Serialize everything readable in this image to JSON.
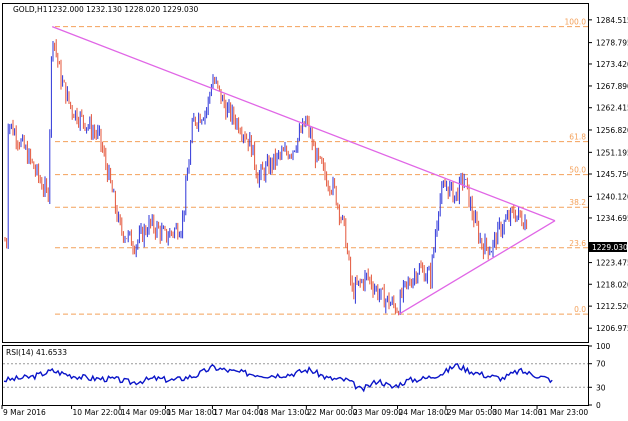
{
  "header": {
    "symbol": "GOLD,H1",
    "ohlc": "1232.000 1232.130 1228.020 1229.030"
  },
  "rsi_header": "RSI(14) 41.6533",
  "current_price_label": "1229.030",
  "colors": {
    "bull": "#2e35d8",
    "bear": "#e4563a",
    "trend": "#e066e6",
    "fib": "#f4a15a",
    "rsi": "#0a14c8",
    "axis": "#000000"
  },
  "chart_data": [
    {
      "type": "line",
      "title": "GOLD,H1",
      "ylim": [
        1203.5,
        1288.5
      ],
      "yticks": [
        1284.515,
        1278.795,
        1273.42,
        1267.89,
        1262.415,
        1256.82,
        1251.195,
        1245.75,
        1240.12,
        1234.695,
        1229.03,
        1223.475,
        1218.02,
        1212.52,
        1206.975
      ],
      "xticks": [
        "9 Mar 2016",
        "10 Mar 22:00",
        "14 Mar 09:00",
        "15 Mar 18:00",
        "17 Mar 04:00",
        "18 Mar 13:00",
        "22 Mar 00:00",
        "23 Mar 09:00",
        "24 Mar 18:00",
        "29 Mar 05:00",
        "30 Mar 14:00",
        "31 Mar 23:00"
      ],
      "fib_levels": [
        {
          "label": "100.0",
          "price": 1282.8
        },
        {
          "label": "61.8",
          "price": 1253.9
        },
        {
          "label": "50.0",
          "price": 1245.6
        },
        {
          "label": "38.2",
          "price": 1237.4
        },
        {
          "label": "23.6",
          "price": 1227.2
        },
        {
          "label": "0.0",
          "price": 1210.5
        }
      ],
      "trendlines": [
        {
          "from": [
            "10 Mar 08:00",
            1282.8
          ],
          "to": [
            "1 Apr 12:00",
            1234.0
          ]
        },
        {
          "from": [
            "24 Mar 19:00",
            1210.5
          ],
          "to": [
            "1 Apr 12:00",
            1234.0
          ]
        }
      ],
      "series": [
        {
          "name": "GOLD,H1",
          "x": [
            "9 Mar 2016",
            "9 Mar 12:00",
            "10 Mar 05:00",
            "10 Mar 08:00",
            "10 Mar 14:00",
            "10 Mar 22:00",
            "11 Mar 10:00",
            "11 Mar 18:00",
            "14 Mar 01:00",
            "14 Mar 09:00",
            "14 Mar 20:00",
            "15 Mar 06:00",
            "15 Mar 12:00",
            "15 Mar 18:00",
            "16 Mar 06:00",
            "16 Mar 14:00",
            "17 Mar 00:00",
            "17 Mar 04:00",
            "17 Mar 14:00",
            "18 Mar 00:00",
            "18 Mar 08:00",
            "18 Mar 13:00",
            "21 Mar 04:00",
            "21 Mar 14:00",
            "22 Mar 00:00",
            "22 Mar 06:00",
            "22 Mar 14:00",
            "22 Mar 20:00",
            "23 Mar 04:00",
            "23 Mar 09:00",
            "23 Mar 20:00",
            "24 Mar 06:00",
            "24 Mar 18:00",
            "24 Mar 22:00",
            "28 Mar 09:00",
            "28 Mar 18:00",
            "29 Mar 00:00",
            "29 Mar 05:00",
            "29 Mar 12:00",
            "29 Mar 18:00",
            "30 Mar 00:00",
            "30 Mar 07:00",
            "30 Mar 14:00",
            "30 Mar 20:00",
            "31 Mar 06:00",
            "31 Mar 14:00",
            "31 Mar 23:00",
            "1 Apr 06:00",
            "1 Apr 10:00"
          ],
          "values": [
            1259,
            1252,
            1240,
            1282,
            1270,
            1262,
            1258,
            1255,
            1245,
            1232,
            1228,
            1233,
            1232,
            1230,
            1233,
            1259,
            1262,
            1270,
            1262,
            1258,
            1253,
            1245,
            1250,
            1252,
            1259,
            1251,
            1245,
            1242,
            1231,
            1216,
            1220,
            1215,
            1212,
            1216,
            1222,
            1220,
            1239,
            1243,
            1240,
            1245,
            1236,
            1228,
            1227,
            1232,
            1236,
            1234,
            1233,
            1231,
            1229
          ]
        }
      ]
    },
    {
      "type": "line",
      "title": "RSI(14) 41.6533",
      "ylim": [
        0,
        100
      ],
      "yticks": [
        100,
        70,
        30,
        0
      ],
      "levels": [
        70,
        30
      ],
      "series": [
        {
          "name": "RSI(14)",
          "x": [
            "9 Mar 2016",
            "9 Mar 18:00",
            "10 Mar 08:00",
            "10 Mar 22:00",
            "11 Mar 12:00",
            "14 Mar 05:00",
            "14 Mar 18:00",
            "15 Mar 10:00",
            "16 Mar 00:00",
            "16 Mar 16:00",
            "17 Mar 04:00",
            "17 Mar 18:00",
            "18 Mar 08:00",
            "18 Mar 20:00",
            "21 Mar 12:00",
            "22 Mar 02:00",
            "22 Mar 16:00",
            "23 Mar 06:00",
            "23 Mar 16:00",
            "24 Mar 04:00",
            "24 Mar 14:00",
            "28 Mar 02:00",
            "28 Mar 14:00",
            "29 Mar 04:00",
            "29 Mar 12:00",
            "29 Mar 22:00",
            "30 Mar 10:00",
            "30 Mar 22:00",
            "31 Mar 10:00",
            "31 Mar 23:00",
            "1 Apr 10:00"
          ],
          "values": [
            42,
            48,
            58,
            50,
            45,
            44,
            38,
            45,
            42,
            50,
            64,
            57,
            53,
            50,
            52,
            60,
            45,
            42,
            25,
            42,
            30,
            42,
            45,
            55,
            68,
            58,
            50,
            45,
            58,
            50,
            42
          ]
        }
      ]
    }
  ]
}
